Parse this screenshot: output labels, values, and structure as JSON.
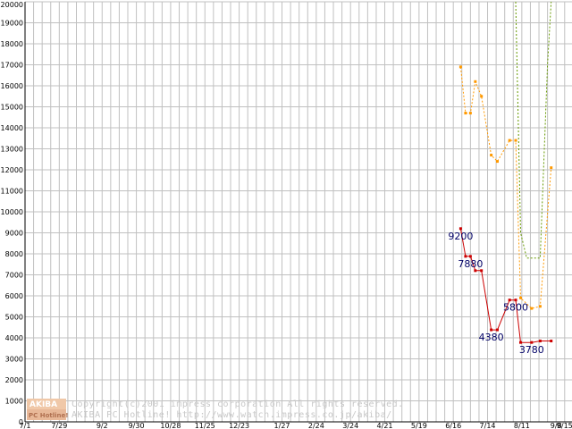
{
  "chart_data": {
    "type": "line",
    "title": "",
    "xlabel": "",
    "ylabel": "",
    "ylim": [
      0,
      20000
    ],
    "xlim": [
      "2001-07-01",
      "2002-09-21"
    ],
    "grid": true,
    "y_ticks": [
      0,
      1000,
      2000,
      3000,
      4000,
      5000,
      6000,
      7000,
      8000,
      9000,
      10000,
      11000,
      12000,
      13000,
      14000,
      15000,
      16000,
      17000,
      18000,
      19000,
      20000
    ],
    "x_ticks": [
      {
        "label": "7/1",
        "date": "2001-07-01"
      },
      {
        "label": "7/29",
        "date": "2001-07-29"
      },
      {
        "label": "9/2",
        "date": "2001-09-02"
      },
      {
        "label": "9/30",
        "date": "2001-09-30"
      },
      {
        "label": "10/28",
        "date": "2001-10-28"
      },
      {
        "label": "11/25",
        "date": "2001-11-25"
      },
      {
        "label": "12/23",
        "date": "2001-12-23"
      },
      {
        "label": "1/27",
        "date": "2002-01-27"
      },
      {
        "label": "2/24",
        "date": "2002-02-24"
      },
      {
        "label": "3/24",
        "date": "2002-03-24"
      },
      {
        "label": "4/21",
        "date": "2002-04-21"
      },
      {
        "label": "5/19",
        "date": "2002-05-19"
      },
      {
        "label": "6/16",
        "date": "2002-06-16"
      },
      {
        "label": "7/14",
        "date": "2002-07-14"
      },
      {
        "label": "8/11",
        "date": "2002-08-11"
      },
      {
        "label": "9/8",
        "date": "2002-09-08"
      },
      {
        "label": "9/15",
        "date": "2002-09-15"
      }
    ],
    "series": [
      {
        "color": "#cc0000",
        "style": "solid",
        "points": [
          {
            "date": "2002-06-22",
            "value": 9200
          },
          {
            "date": "2002-06-26",
            "value": 7880
          },
          {
            "date": "2002-06-30",
            "value": 7880
          },
          {
            "date": "2002-07-04",
            "value": 7200
          },
          {
            "date": "2002-07-09",
            "value": 7200
          },
          {
            "date": "2002-07-17",
            "value": 4380
          },
          {
            "date": "2002-07-22",
            "value": 4380
          },
          {
            "date": "2002-08-01",
            "value": 5800
          },
          {
            "date": "2002-08-06",
            "value": 5800
          },
          {
            "date": "2002-08-10",
            "value": 3780
          },
          {
            "date": "2002-08-19",
            "value": 3780
          },
          {
            "date": "2002-08-26",
            "value": 3850
          },
          {
            "date": "2002-09-04",
            "value": 3850
          }
        ]
      },
      {
        "color": "#ff9900",
        "style": "dotted",
        "points": [
          {
            "date": "2002-06-22",
            "value": 16900
          },
          {
            "date": "2002-06-26",
            "value": 14700
          },
          {
            "date": "2002-06-30",
            "value": 14700
          },
          {
            "date": "2002-07-04",
            "value": 16200
          },
          {
            "date": "2002-07-09",
            "value": 15500
          },
          {
            "date": "2002-07-17",
            "value": 12700
          },
          {
            "date": "2002-07-22",
            "value": 12400
          },
          {
            "date": "2002-08-01",
            "value": 13400
          },
          {
            "date": "2002-08-06",
            "value": 13400
          },
          {
            "date": "2002-08-10",
            "value": 5900
          },
          {
            "date": "2002-08-19",
            "value": 5400
          },
          {
            "date": "2002-08-26",
            "value": 5500
          },
          {
            "date": "2002-09-04",
            "value": 12100
          }
        ]
      },
      {
        "color": "#669900",
        "style": "dotted",
        "points": [
          {
            "date": "2002-08-06",
            "value": 20000
          },
          {
            "date": "2002-08-10",
            "value": 9000
          },
          {
            "date": "2002-08-15",
            "value": 7800
          },
          {
            "date": "2002-08-26",
            "value": 7800
          },
          {
            "date": "2002-09-01",
            "value": 17000
          },
          {
            "date": "2002-09-04",
            "value": 20000
          }
        ]
      }
    ],
    "data_labels": [
      {
        "text": "9200",
        "date": "2002-06-22",
        "value": 9200
      },
      {
        "text": "7880",
        "date": "2002-06-30",
        "value": 7880
      },
      {
        "text": "4380",
        "date": "2002-07-17",
        "value": 4380
      },
      {
        "text": "5800",
        "date": "2002-08-06",
        "value": 5800
      },
      {
        "text": "3780",
        "date": "2002-08-19",
        "value": 3780
      }
    ]
  },
  "watermark": {
    "logo_top": "AKIBA",
    "logo_bottom": "PC Hotline!",
    "line1": "Copyright(c)2001 impress corporation All rights reserved.",
    "line2": "AKIBA PC Hotline!  http://www.watch.impress.co.jp/akiba/"
  },
  "colors": {
    "grid": "#c0c0c0",
    "axis": "#000000",
    "watermark": "#c8c8c8",
    "logo_bg": "#f0c8a8",
    "logo_top_text": "#ffffff",
    "logo_bottom_text": "#b07050"
  }
}
